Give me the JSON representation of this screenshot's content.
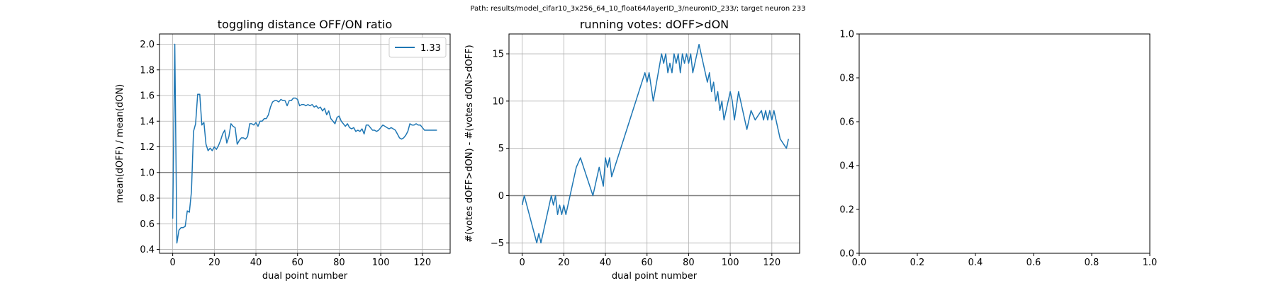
{
  "suptitle": "Path: results/model_cifar10_3x256_64_10_float64/layerID_3/neuronID_233/; target neuron 233",
  "colors": {
    "line": "#1f77b4",
    "grid": "#b0b0b0",
    "ref": "#808080",
    "axis": "#000000"
  },
  "chart_data": [
    {
      "type": "line",
      "title": "toggling distance OFF/ON ratio",
      "xlabel": "dual point number",
      "ylabel": "mean(dOFF) / mean(dON)",
      "xlim": [
        -6.35,
        133.35
      ],
      "ylim": [
        0.37,
        2.08
      ],
      "xticks": [
        0,
        20,
        40,
        60,
        80,
        100,
        120
      ],
      "xtick_labels": [
        "0",
        "20",
        "40",
        "60",
        "80",
        "100",
        "120"
      ],
      "yticks": [
        0.4,
        0.6,
        0.8,
        1.0,
        1.2,
        1.4,
        1.6,
        1.8,
        2.0
      ],
      "ytick_labels": [
        "0.4",
        "0.6",
        "0.8",
        "1.0",
        "1.2",
        "1.4",
        "1.6",
        "1.8",
        "2.0"
      ],
      "grid": true,
      "hline": 1.0,
      "legend": {
        "position": "upper right",
        "label": "1.33"
      },
      "series": [
        {
          "name": "1.33",
          "x": [
            0,
            1,
            2,
            3,
            4,
            5,
            6,
            7,
            8,
            9,
            10,
            11,
            12,
            13,
            14,
            15,
            16,
            17,
            18,
            19,
            20,
            21,
            22,
            23,
            24,
            25,
            26,
            27,
            28,
            29,
            30,
            31,
            32,
            33,
            34,
            35,
            36,
            37,
            38,
            39,
            40,
            41,
            42,
            43,
            44,
            45,
            46,
            47,
            48,
            49,
            50,
            51,
            52,
            53,
            54,
            55,
            56,
            57,
            58,
            59,
            60,
            61,
            62,
            63,
            64,
            65,
            66,
            67,
            68,
            69,
            70,
            71,
            72,
            73,
            74,
            75,
            76,
            77,
            78,
            79,
            80,
            81,
            82,
            83,
            84,
            85,
            86,
            87,
            88,
            89,
            90,
            91,
            92,
            93,
            94,
            95,
            96,
            97,
            98,
            99,
            100,
            101,
            102,
            103,
            104,
            105,
            106,
            107,
            108,
            109,
            110,
            111,
            112,
            113,
            114,
            115,
            116,
            117,
            118,
            119,
            120,
            121,
            122,
            123,
            124,
            125,
            126,
            127
          ],
          "y": [
            0.64,
            2.0,
            0.45,
            0.55,
            0.57,
            0.57,
            0.58,
            0.7,
            0.69,
            0.85,
            1.32,
            1.38,
            1.61,
            1.61,
            1.37,
            1.39,
            1.22,
            1.17,
            1.19,
            1.17,
            1.2,
            1.18,
            1.21,
            1.25,
            1.3,
            1.33,
            1.23,
            1.28,
            1.38,
            1.36,
            1.35,
            1.22,
            1.25,
            1.27,
            1.27,
            1.26,
            1.28,
            1.38,
            1.38,
            1.37,
            1.39,
            1.36,
            1.4,
            1.4,
            1.42,
            1.42,
            1.45,
            1.51,
            1.55,
            1.56,
            1.56,
            1.55,
            1.57,
            1.56,
            1.56,
            1.52,
            1.56,
            1.56,
            1.58,
            1.58,
            1.57,
            1.52,
            1.53,
            1.53,
            1.52,
            1.53,
            1.52,
            1.53,
            1.51,
            1.52,
            1.5,
            1.51,
            1.48,
            1.5,
            1.45,
            1.48,
            1.42,
            1.4,
            1.38,
            1.43,
            1.44,
            1.4,
            1.38,
            1.36,
            1.38,
            1.35,
            1.34,
            1.35,
            1.32,
            1.33,
            1.32,
            1.34,
            1.3,
            1.37,
            1.37,
            1.35,
            1.33,
            1.33,
            1.32,
            1.33,
            1.35,
            1.37,
            1.36,
            1.35,
            1.34,
            1.35,
            1.34,
            1.33,
            1.3,
            1.27,
            1.26,
            1.27,
            1.29,
            1.32,
            1.38,
            1.37,
            1.37,
            1.38,
            1.37,
            1.37,
            1.35,
            1.33,
            1.33,
            1.33,
            1.33,
            1.33,
            1.33,
            1.33
          ]
        }
      ]
    },
    {
      "type": "line",
      "title": "running votes: dOFF>dON",
      "xlabel": "dual point number",
      "ylabel": "#(votes dOFF>dON) - #(votes dON>dOFF)",
      "xlim": [
        -6.35,
        133.35
      ],
      "ylim": [
        -6.1,
        17.1
      ],
      "xticks": [
        0,
        20,
        40,
        60,
        80,
        100,
        120
      ],
      "xtick_labels": [
        "0",
        "20",
        "40",
        "60",
        "80",
        "100",
        "120"
      ],
      "yticks": [
        -5,
        0,
        5,
        10,
        15
      ],
      "ytick_labels": [
        "−5",
        "0",
        "5",
        "10",
        "15"
      ],
      "grid": true,
      "hline": 0,
      "series": [
        {
          "x": [
            0,
            1,
            7,
            8,
            9,
            14,
            15,
            16,
            17,
            18,
            19,
            20,
            21,
            25,
            26,
            28,
            34,
            37,
            39,
            40,
            41,
            42,
            43,
            59,
            60,
            61,
            63,
            67,
            68,
            69,
            70,
            71,
            72,
            73,
            74,
            75,
            76,
            77,
            78,
            79,
            80,
            81,
            82,
            85,
            86,
            89,
            90,
            91,
            92,
            93,
            94,
            95,
            96,
            97,
            98,
            99,
            100,
            101,
            102,
            104,
            105,
            106,
            108,
            109,
            110,
            112,
            115,
            116,
            117,
            118,
            119,
            120,
            121,
            122,
            123,
            124,
            127,
            128
          ],
          "y": [
            -1,
            0,
            -5,
            -4,
            -5,
            0,
            -1,
            0,
            -2,
            -1,
            -2,
            -1,
            -2,
            2,
            3,
            4,
            0,
            3,
            1,
            4,
            3,
            4,
            2,
            13,
            12,
            13,
            10,
            15,
            14,
            15,
            13,
            14,
            13,
            15,
            14,
            15,
            13,
            15,
            14,
            15,
            14,
            15,
            13,
            16,
            15,
            12,
            13,
            11,
            12,
            10,
            11,
            9,
            10,
            8,
            9,
            10,
            11,
            10,
            8,
            11,
            10,
            9,
            7,
            8,
            9,
            8,
            9,
            8,
            9,
            8,
            9,
            8,
            9,
            8,
            7,
            6,
            5,
            6
          ]
        }
      ]
    },
    {
      "type": "line",
      "title": "",
      "xlabel": "",
      "ylabel": "",
      "xlim": [
        0,
        1
      ],
      "ylim": [
        0,
        1
      ],
      "xticks": [
        0,
        0.2,
        0.4,
        0.6,
        0.8,
        1.0
      ],
      "xtick_labels": [
        "0.0",
        "0.2",
        "0.4",
        "0.6",
        "0.8",
        "1.0"
      ],
      "yticks": [
        0,
        0.2,
        0.4,
        0.6,
        0.8,
        1.0
      ],
      "ytick_labels": [
        "0.0",
        "0.2",
        "0.4",
        "0.6",
        "0.8",
        "1.0"
      ],
      "grid": false,
      "series": []
    }
  ]
}
